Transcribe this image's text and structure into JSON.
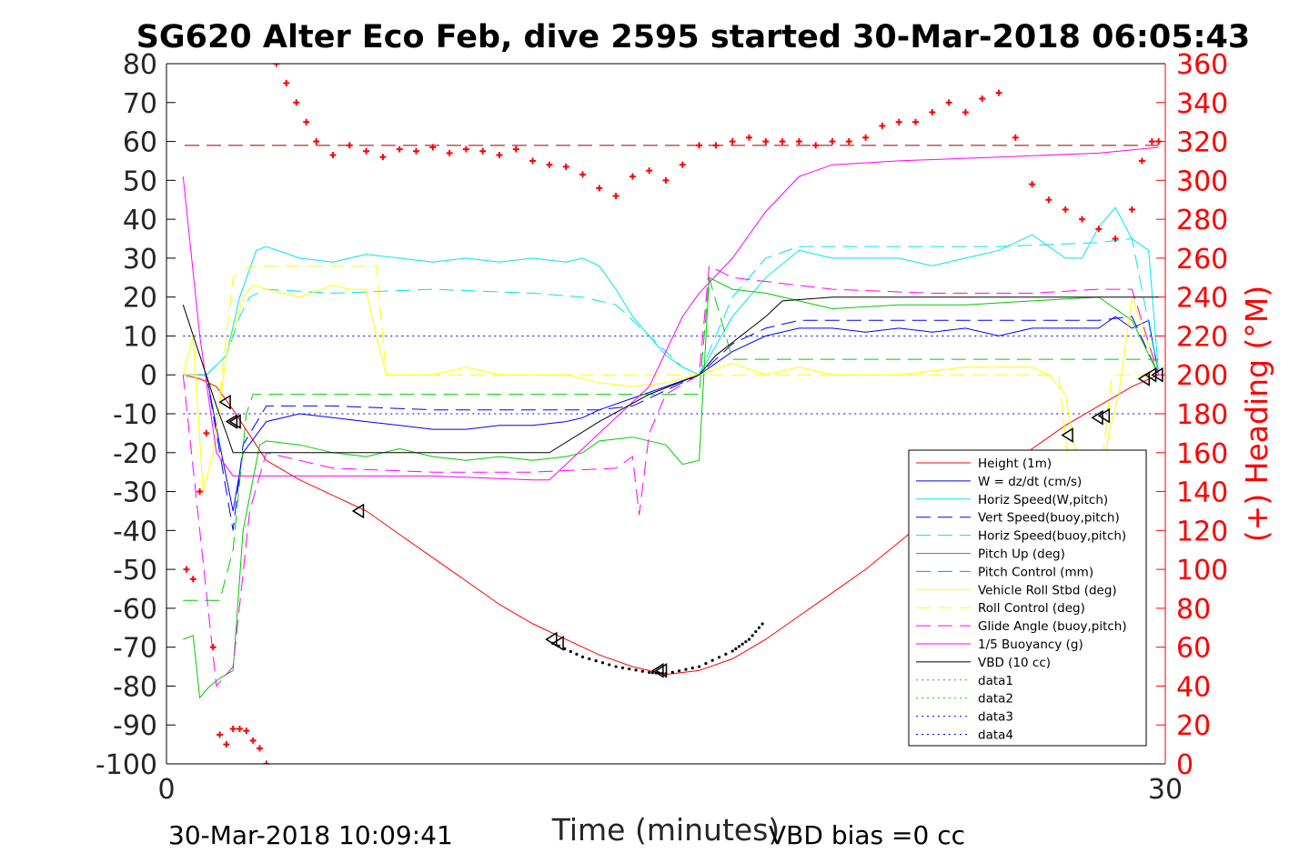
{
  "chart_data": {
    "type": "line",
    "title": "SG620 Alter Eco Feb, dive 2595 started 30-Mar-2018 06:05:43",
    "xlabel": "Time (minutes)",
    "ylabel_left": "",
    "ylabel_right": "(+) Heading (°M)",
    "xlim": [
      0,
      30
    ],
    "ylim_left": [
      -100,
      80
    ],
    "ylim_right": [
      0,
      360
    ],
    "x_ticks": [
      "0",
      "30"
    ],
    "y_ticks_left": [
      "80",
      "70",
      "60",
      "50",
      "40",
      "30",
      "20",
      "10",
      "0",
      "-10",
      "-20",
      "-30",
      "-40",
      "-50",
      "-60",
      "-70",
      "-80",
      "-90",
      "-100"
    ],
    "y_ticks_right": [
      "360",
      "340",
      "320",
      "300",
      "280",
      "260",
      "240",
      "220",
      "200",
      "180",
      "160",
      "140",
      "120",
      "100",
      "80",
      "60",
      "40",
      "20",
      "0"
    ],
    "footer_left": "30-Mar-2018 10:09:41",
    "footer_right": "VBD bias =0 cc",
    "colors": {
      "red": "#ff0000",
      "blue": "#0000ff",
      "cyan": "#00e5ee",
      "green": "#00cc00",
      "yellow": "#ffff00",
      "magenta": "#ff00ff",
      "black": "#000000",
      "darkred": "#990000"
    },
    "legend": {
      "placement": "bottom-right",
      "entries": [
        {
          "label": "Height (1m)",
          "color": "#ff0000",
          "dash": "solid"
        },
        {
          "label": "W = dz/dt (cm/s)",
          "color": "#0000ff",
          "dash": "solid"
        },
        {
          "label": "Horiz Speed(W,pitch)",
          "color": "#00e5ee",
          "dash": "solid"
        },
        {
          "label": "Vert Speed(buoy,pitch)",
          "color": "#0000ff",
          "dash": "dashed"
        },
        {
          "label": "Horiz Speed(buoy,pitch)",
          "color": "#00e5ee",
          "dash": "dashed"
        },
        {
          "label": "Pitch Up (deg)",
          "color": "#00cc00",
          "dash": "solid"
        },
        {
          "label": "Pitch Control (mm)",
          "color": "#00cc00",
          "dash": "dashed"
        },
        {
          "label": "Vehicle Roll Stbd (deg)",
          "color": "#ffff00",
          "dash": "solid"
        },
        {
          "label": "Roll Control (deg)",
          "color": "#ffff00",
          "dash": "dashed"
        },
        {
          "label": "Glide Angle (buoy,pitch)",
          "color": "#ff00ff",
          "dash": "dashed"
        },
        {
          "label": "1/5 Buoyancy (g)",
          "color": "#ff00ff",
          "dash": "solid"
        },
        {
          "label": "VBD (10 cc)",
          "color": "#000000",
          "dash": "solid"
        },
        {
          "label": "data1",
          "color": "#00cc00",
          "dash": "dotted"
        },
        {
          "label": "data2",
          "color": "#00cc00",
          "dash": "dotted"
        },
        {
          "label": "data3",
          "color": "#0000ff",
          "dash": "dotted"
        },
        {
          "label": "data4",
          "color": "#0000ff",
          "dash": "dotted"
        }
      ]
    },
    "series": [
      {
        "name": "Height (1m)",
        "axis": "left",
        "color": "#ff0000",
        "dash": "solid",
        "x": [
          0.5,
          1.0,
          1.5,
          2.0,
          3.0,
          4.0,
          5.0,
          6.0,
          7.0,
          8.0,
          9.0,
          10.0,
          11.0,
          12.0,
          13.0,
          14.0,
          15.0,
          16.0,
          17.0,
          18.0,
          19.0,
          20.0,
          21.0,
          22.0,
          23.0,
          24.0,
          25.0,
          26.0,
          27.0,
          28.0,
          29.0,
          29.8
        ],
        "y": [
          0,
          -1,
          -3,
          -9,
          -22,
          -27,
          -31,
          -35,
          -41,
          -47,
          -53,
          -59,
          -64,
          -68,
          -72,
          -75,
          -77,
          -76,
          -73,
          -68,
          -62,
          -56,
          -50,
          -43,
          -36,
          -30,
          -25,
          -19,
          -13,
          -8,
          -3,
          0
        ]
      },
      {
        "name": "W = dz/dt (cm/s)",
        "axis": "left",
        "color": "#0000ff",
        "dash": "solid",
        "x": [
          0.5,
          1.2,
          1.6,
          2.0,
          2.3,
          3.0,
          4.0,
          5.0,
          6.0,
          7.0,
          8.0,
          9.0,
          10.0,
          11.0,
          12.0,
          12.5,
          13.0,
          14.0,
          15.0,
          16.0,
          17.0,
          18.0,
          19.0,
          20.0,
          21.0,
          22.0,
          23.0,
          24.0,
          25.0,
          26.0,
          27.0,
          28.0,
          28.5,
          29.0,
          29.5,
          29.8
        ],
        "y": [
          0,
          0,
          -18,
          -35,
          -20,
          -12,
          -10,
          -11,
          -12,
          -13,
          -14,
          -14,
          -13,
          -13,
          -12,
          -11,
          -9,
          -6,
          -3,
          0,
          6,
          10,
          12,
          12,
          11,
          12,
          11,
          12,
          10,
          12,
          12,
          12,
          15,
          12,
          14,
          0
        ]
      },
      {
        "name": "Horiz Speed(W,pitch)",
        "axis": "left",
        "color": "#00e5ee",
        "dash": "solid",
        "x": [
          0.5,
          1.2,
          1.8,
          2.2,
          2.7,
          3.0,
          4.0,
          5.0,
          6.0,
          7.0,
          8.0,
          9.0,
          10.0,
          11.0,
          12.0,
          12.5,
          13.0,
          13.5,
          14.0,
          14.5,
          15.0,
          15.5,
          16.0,
          17.0,
          18.0,
          19.0,
          20.0,
          21.0,
          22.0,
          23.0,
          24.0,
          25.0,
          26.0,
          27.0,
          27.5,
          28.0,
          28.5,
          29.0,
          29.5,
          29.8
        ],
        "y": [
          0,
          0,
          5,
          20,
          32,
          33,
          30,
          29,
          31,
          30,
          29,
          30,
          29,
          30,
          29,
          30,
          28,
          22,
          15,
          10,
          5,
          2,
          0,
          15,
          25,
          32,
          30,
          30,
          30,
          28,
          30,
          32,
          36,
          30,
          30,
          38,
          43,
          35,
          32,
          0
        ]
      },
      {
        "name": "Vert Speed(buoy,pitch)",
        "axis": "left",
        "color": "#0000ff",
        "dash": "dashed",
        "x": [
          0.5,
          1.2,
          1.6,
          2.0,
          2.3,
          3.0,
          5.0,
          8.0,
          11.0,
          13.0,
          14.0,
          15.0,
          16.0,
          17.0,
          18.0,
          19.0,
          22.0,
          25.0,
          28.0,
          29.0,
          29.8
        ],
        "y": [
          0,
          0,
          -20,
          -40,
          -18,
          -8,
          -8,
          -9,
          -9,
          -9,
          -8,
          -4,
          0,
          8,
          12,
          14,
          14,
          14,
          14,
          15,
          0
        ]
      },
      {
        "name": "Horiz Speed(buoy,pitch)",
        "axis": "left",
        "color": "#00e5ee",
        "dash": "dashed",
        "x": [
          0.5,
          1.2,
          1.8,
          2.2,
          2.5,
          3.0,
          5.0,
          8.0,
          11.0,
          12.5,
          13.5,
          14.5,
          15.5,
          16.0,
          17.0,
          18.0,
          19.0,
          22.0,
          25.0,
          28.0,
          29.0,
          29.8
        ],
        "y": [
          0,
          0,
          5,
          15,
          20,
          22,
          21,
          22,
          21,
          20,
          18,
          10,
          2,
          0,
          20,
          30,
          33,
          33,
          33,
          34,
          35,
          0
        ]
      },
      {
        "name": "Pitch Up (deg)",
        "axis": "left",
        "color": "#00cc00",
        "dash": "solid",
        "x": [
          0.5,
          0.8,
          1.0,
          1.3,
          1.6,
          2.0,
          2.3,
          2.8,
          3.0,
          4.0,
          5.0,
          6.0,
          7.0,
          8.0,
          9.0,
          10.0,
          11.0,
          12.0,
          12.5,
          13.0,
          14.0,
          15.0,
          15.5,
          16.0,
          16.3,
          17.0,
          18.0,
          19.0,
          20.0,
          22.0,
          24.0,
          26.0,
          28.0,
          29.0,
          29.8
        ],
        "y": [
          -68,
          -67,
          -83,
          -80,
          -78,
          -76,
          -40,
          -18,
          -17,
          -18,
          -20,
          -21,
          -19,
          -21,
          -22,
          -21,
          -22,
          -21,
          -20,
          -17,
          -16,
          -18,
          -23,
          -22,
          25,
          22,
          21,
          19,
          17,
          18,
          18,
          19,
          20,
          14,
          0
        ]
      },
      {
        "name": "Pitch Control (mm)",
        "axis": "left",
        "color": "#00cc00",
        "dash": "dashed",
        "x": [
          0.5,
          1.0,
          1.6,
          2.0,
          2.4,
          2.6,
          5.0,
          8.0,
          11.0,
          14.0,
          15.8,
          16.0,
          16.3,
          17.0,
          20.0,
          23.0,
          26.0,
          29.0,
          29.8
        ],
        "y": [
          -58,
          -58,
          -58,
          -45,
          -10,
          -5,
          -5,
          -5,
          -5,
          -5,
          -5,
          -5,
          25,
          4,
          4,
          4,
          4,
          4,
          4
        ]
      },
      {
        "name": "Vehicle Roll Stbd (deg)",
        "axis": "left",
        "color": "#ffff00",
        "dash": "solid",
        "x": [
          0.5,
          0.8,
          1.1,
          1.4,
          1.8,
          2.3,
          2.6,
          3.0,
          4.0,
          5.0,
          5.5,
          6.0,
          6.3,
          6.6,
          7.0,
          8.0,
          9.0,
          10.0,
          11.0,
          12.0,
          13.0,
          14.0,
          15.0,
          16.0,
          17.0,
          18.0,
          19.0,
          20.0,
          22.0,
          24.0,
          26.0,
          26.5,
          27.0,
          27.3,
          27.6,
          28.0,
          28.3,
          28.6,
          29.0,
          29.8
        ],
        "y": [
          0,
          10,
          -30,
          -20,
          5,
          20,
          23,
          22,
          20,
          23,
          22,
          22,
          10,
          0,
          0,
          0,
          2,
          0,
          0,
          0,
          -2,
          -3,
          -2,
          0,
          3,
          0,
          2,
          0,
          0,
          2,
          2,
          0,
          -5,
          -20,
          -35,
          -38,
          -15,
          -5,
          20,
          0
        ]
      },
      {
        "name": "Roll Control (deg)",
        "axis": "left",
        "color": "#ffff00",
        "dash": "dashed",
        "x": [
          0.5,
          1.0,
          1.6,
          2.0,
          2.5,
          5.0,
          6.0,
          6.3,
          6.6,
          10.0,
          14.0,
          16.0,
          16.3,
          20.0,
          24.0,
          26.0,
          26.8,
          27.3,
          27.6,
          28.0,
          28.4,
          28.8,
          29.2,
          29.8
        ],
        "y": [
          0,
          0,
          -5,
          25,
          28,
          28,
          28,
          28,
          0,
          0,
          0,
          0,
          0,
          0,
          0,
          0,
          0,
          -40,
          -40,
          -30,
          0,
          0,
          0,
          0
        ]
      },
      {
        "name": "Glide Angle (buoy,pitch)",
        "axis": "left",
        "color": "#ff00ff",
        "dash": "dashed",
        "x": [
          0.5,
          1.0,
          1.5,
          2.0,
          2.5,
          3.0,
          5.0,
          8.0,
          11.0,
          13.5,
          14.0,
          14.2,
          14.5,
          15.0,
          16.0,
          16.3,
          17.0,
          20.0,
          23.0,
          26.0,
          28.0,
          29.0,
          29.8
        ],
        "y": [
          0,
          -40,
          -80,
          -75,
          -35,
          -20,
          -24,
          -25,
          -25,
          -24,
          -21,
          -36,
          -15,
          -5,
          0,
          28,
          25,
          22,
          21,
          21,
          22,
          22,
          0
        ]
      },
      {
        "name": "1/5 Buoyancy (g)",
        "axis": "left",
        "color": "#ff00ff",
        "dash": "solid",
        "x": [
          0.5,
          1.0,
          1.5,
          2.0,
          5.0,
          8.0,
          11.0,
          11.5,
          13.0,
          14.5,
          15.5,
          16.0,
          17.0,
          18.0,
          19.0,
          20.0,
          22.0,
          25.0,
          28.0,
          29.8
        ],
        "y": [
          51,
          10,
          -20,
          -26,
          -26,
          -26,
          -27,
          -27,
          -15,
          -3,
          15,
          21,
          30,
          42,
          51,
          54,
          55,
          56,
          57,
          58.5
        ]
      },
      {
        "name": "VBD (10 cc)",
        "axis": "left",
        "color": "#000000",
        "dash": "solid",
        "x": [
          0.5,
          1.0,
          1.5,
          1.8,
          2.0,
          5.0,
          8.0,
          11.0,
          11.5,
          13.0,
          14.5,
          16.0,
          16.5,
          18.0,
          18.5,
          20.0,
          23.0,
          26.0,
          29.0,
          29.8
        ],
        "y": [
          18,
          5,
          -8,
          -15,
          -20,
          -20,
          -20,
          -20,
          -20,
          -12,
          -5,
          0,
          5,
          15,
          19,
          20,
          20,
          20,
          20,
          20
        ]
      },
      {
        "name": "Heading",
        "axis": "right",
        "color": "#ff0000",
        "dash": "markers",
        "x": [
          0.6,
          0.8,
          1.0,
          1.2,
          1.4,
          1.6,
          1.8,
          2.0,
          2.2,
          2.4,
          2.6,
          2.8,
          3.0,
          3.3,
          3.6,
          3.9,
          4.2,
          4.5,
          5.0,
          5.5,
          6.0,
          6.5,
          7.0,
          7.5,
          8.0,
          8.5,
          9.0,
          9.5,
          10.0,
          10.5,
          11.0,
          11.5,
          12.0,
          12.5,
          13.0,
          13.5,
          14.0,
          14.5,
          15.0,
          15.5,
          16.0,
          16.5,
          17.0,
          17.5,
          18.0,
          18.5,
          19.0,
          19.5,
          20.0,
          20.5,
          21.0,
          21.5,
          22.0,
          22.5,
          23.0,
          23.5,
          24.0,
          24.5,
          25.0,
          25.5,
          26.0,
          26.5,
          27.0,
          27.5,
          28.0,
          28.5,
          29.0,
          29.3,
          29.6,
          29.8
        ],
        "y": [
          100,
          95,
          140,
          170,
          60,
          15,
          10,
          18,
          18,
          17,
          12,
          8,
          0,
          360,
          350,
          340,
          330,
          320,
          313,
          318,
          315,
          312,
          316,
          315,
          317,
          314,
          316,
          315,
          313,
          316,
          310,
          308,
          307,
          303,
          296,
          292,
          302,
          305,
          300,
          308,
          318,
          318,
          320,
          322,
          320,
          320,
          320,
          318,
          320,
          320,
          322,
          328,
          330,
          330,
          335,
          340,
          335,
          342,
          345,
          322,
          298,
          290,
          285,
          280,
          275,
          270,
          285,
          310,
          320,
          320
        ]
      }
    ],
    "annotations": [
      {
        "type": "reference_line",
        "axis": "right",
        "value": 318,
        "color": "#990000",
        "dash": "dashed"
      },
      {
        "type": "reference_line",
        "axis": "left",
        "value": 10,
        "color": "#0000ff",
        "dash": "dotted"
      },
      {
        "type": "reference_line",
        "axis": "left",
        "value": -10,
        "color": "#0000ff",
        "dash": "dotted"
      },
      {
        "type": "triangle_markers",
        "points": [
          [
            1.8,
            -7
          ],
          [
            2.0,
            -12
          ],
          [
            2.1,
            -12
          ],
          [
            5.8,
            -35
          ],
          [
            11.6,
            -68
          ],
          [
            11.8,
            -69
          ],
          [
            14.8,
            -76
          ],
          [
            14.9,
            -76
          ],
          [
            27.1,
            -15.5
          ],
          [
            28.0,
            -11
          ],
          [
            28.2,
            -10.5
          ],
          [
            29.4,
            -1
          ],
          [
            29.6,
            0
          ],
          [
            29.8,
            0
          ]
        ]
      },
      {
        "type": "dotted_segment",
        "x": [
          11.6,
          12.5,
          13.5,
          14.5,
          15.0,
          16.0,
          17.0,
          17.5,
          18.0
        ],
        "y": [
          -69,
          -72.5,
          -75,
          -76.5,
          -76.8,
          -75,
          -71,
          -68,
          -63
        ]
      }
    ]
  }
}
